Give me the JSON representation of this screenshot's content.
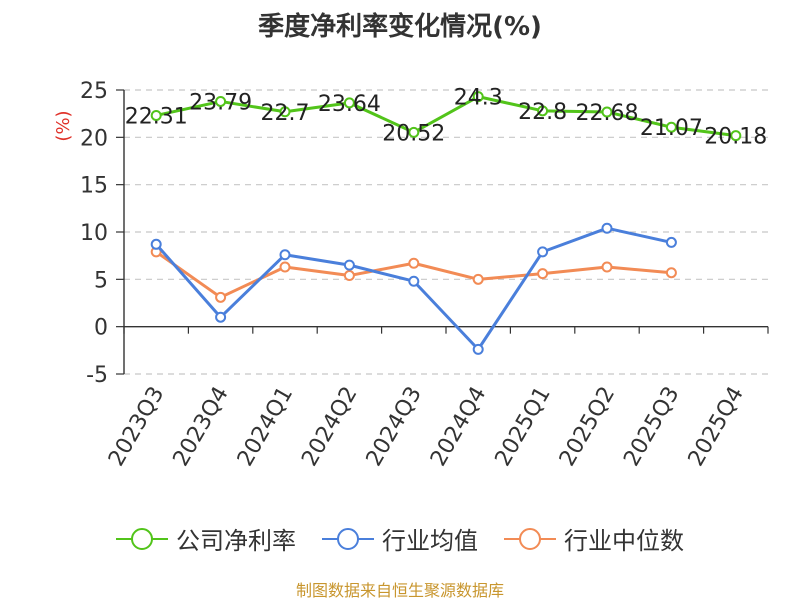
{
  "title": "季度净利率变化情况(%)",
  "footer": "制图数据来自恒生聚源数据库",
  "chart_data": {
    "type": "line",
    "title": "季度净利率变化情况(%)",
    "ylabel": "(%)",
    "xlabel": "",
    "ylim": [
      -5,
      25
    ],
    "yticks": [
      25,
      20,
      15,
      10,
      5,
      0,
      -5
    ],
    "grid": true,
    "legend_position": "bottom",
    "categories": [
      "2023Q3",
      "2023Q4",
      "2024Q1",
      "2024Q2",
      "2024Q3",
      "2024Q4",
      "2025Q1",
      "2025Q2",
      "2025Q3",
      "2025Q4"
    ],
    "series": [
      {
        "name": "公司净利率",
        "color": "#52c41a",
        "values": [
          22.31,
          23.79,
          22.7,
          23.64,
          20.52,
          24.3,
          22.8,
          22.68,
          21.07,
          20.18
        ],
        "labels": [
          "22.31",
          "23.79",
          "22.7",
          "23.64",
          "20.52",
          "24.3",
          "22.8",
          "22.68",
          "21.07",
          "20.18"
        ]
      },
      {
        "name": "行业均值",
        "color": "#4a7fdb",
        "values": [
          8.7,
          1.0,
          7.6,
          6.5,
          4.8,
          -2.4,
          7.9,
          10.4,
          8.9,
          null
        ]
      },
      {
        "name": "行业中位数",
        "color": "#f28b55",
        "values": [
          7.9,
          3.1,
          6.3,
          5.4,
          6.7,
          5.0,
          5.6,
          6.3,
          5.7,
          null
        ]
      }
    ]
  }
}
